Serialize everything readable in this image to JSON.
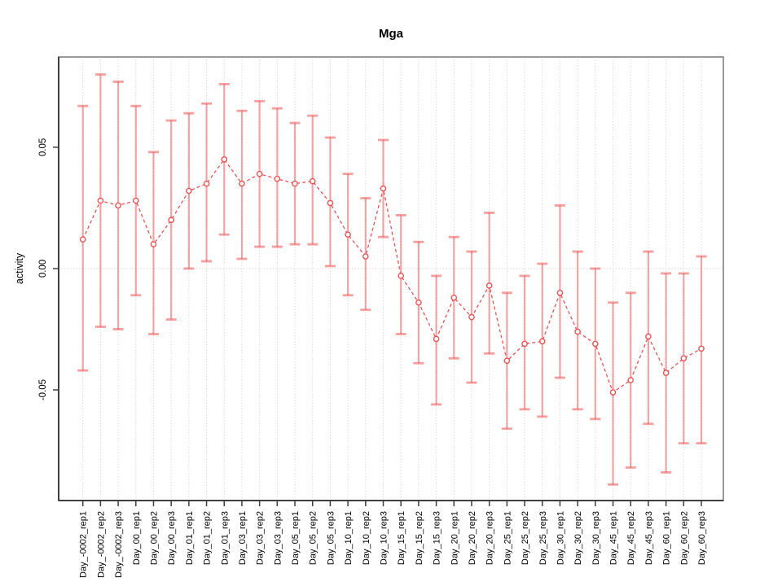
{
  "chart_data": {
    "type": "line",
    "title": "Mga",
    "xlabel": "",
    "ylabel": "activity",
    "series_name": "activity",
    "marker": "open-circle",
    "line_style": "dashed",
    "error_bars": true,
    "legend": "none",
    "grid": {
      "vertical": "dotted-per-category",
      "horizontal_at_zero": true
    },
    "ylim": [
      -0.0956,
      0.0872
    ],
    "yticks": [
      {
        "value": 0.05,
        "label": "0.05"
      },
      {
        "value": 0.0,
        "label": "0.00"
      },
      {
        "value": -0.05,
        "label": "-0.05"
      }
    ],
    "categories": [
      "Day_-0002_rep1",
      "Day_-0002_rep2",
      "Day_-0002_rep3",
      "Day_00_rep1",
      "Day_00_rep2",
      "Day_00_rep3",
      "Day_01_rep1",
      "Day_01_rep2",
      "Day_01_rep3",
      "Day_03_rep1",
      "Day_03_rep2",
      "Day_03_rep3",
      "Day_05_rep1",
      "Day_05_rep2",
      "Day_05_rep3",
      "Day_10_rep1",
      "Day_10_rep2",
      "Day_10_rep3",
      "Day_15_rep1",
      "Day_15_rep2",
      "Day_15_rep3",
      "Day_20_rep1",
      "Day_20_rep2",
      "Day_20_rep3",
      "Day_25_rep1",
      "Day_25_rep2",
      "Day_25_rep3",
      "Day_30_rep1",
      "Day_30_rep2",
      "Day_30_rep3",
      "Day_45_rep1",
      "Day_45_rep2",
      "Day_45_rep3",
      "Day_60_rep1",
      "Day_60_rep2",
      "Day_60_rep3"
    ],
    "values": [
      0.012,
      0.028,
      0.026,
      0.028,
      0.01,
      0.02,
      0.032,
      0.035,
      0.045,
      0.035,
      0.039,
      0.037,
      0.035,
      0.036,
      0.027,
      0.014,
      0.005,
      0.033,
      -0.003,
      -0.014,
      -0.029,
      -0.012,
      -0.02,
      -0.007,
      -0.038,
      -0.031,
      -0.03,
      -0.01,
      -0.026,
      -0.031,
      -0.051,
      -0.046,
      -0.028,
      -0.043,
      -0.037,
      -0.033
    ],
    "error_high": [
      0.067,
      0.08,
      0.077,
      0.067,
      0.048,
      0.061,
      0.064,
      0.068,
      0.076,
      0.065,
      0.069,
      0.066,
      0.06,
      0.063,
      0.054,
      0.039,
      0.029,
      0.053,
      0.022,
      0.011,
      -0.003,
      0.013,
      0.007,
      0.023,
      -0.01,
      -0.003,
      0.002,
      0.026,
      0.007,
      0.0,
      -0.014,
      -0.01,
      0.007,
      -0.002,
      -0.002,
      0.005
    ],
    "error_low": [
      -0.042,
      -0.024,
      -0.025,
      -0.011,
      -0.027,
      -0.021,
      0.0,
      0.003,
      0.014,
      0.004,
      0.009,
      0.009,
      0.01,
      0.01,
      0.001,
      -0.011,
      -0.017,
      0.013,
      -0.027,
      -0.039,
      -0.056,
      -0.037,
      -0.047,
      -0.035,
      -0.066,
      -0.058,
      -0.061,
      -0.045,
      -0.058,
      -0.062,
      -0.089,
      -0.082,
      -0.064,
      -0.084,
      -0.072,
      -0.072
    ],
    "colors": {
      "series": "#ef5252",
      "error_bar": "#f05050",
      "gridline": "#d2d2d2",
      "box": "#989898",
      "axis": "#3f3f3f",
      "text": "#000000",
      "background": "#ffffff"
    }
  }
}
